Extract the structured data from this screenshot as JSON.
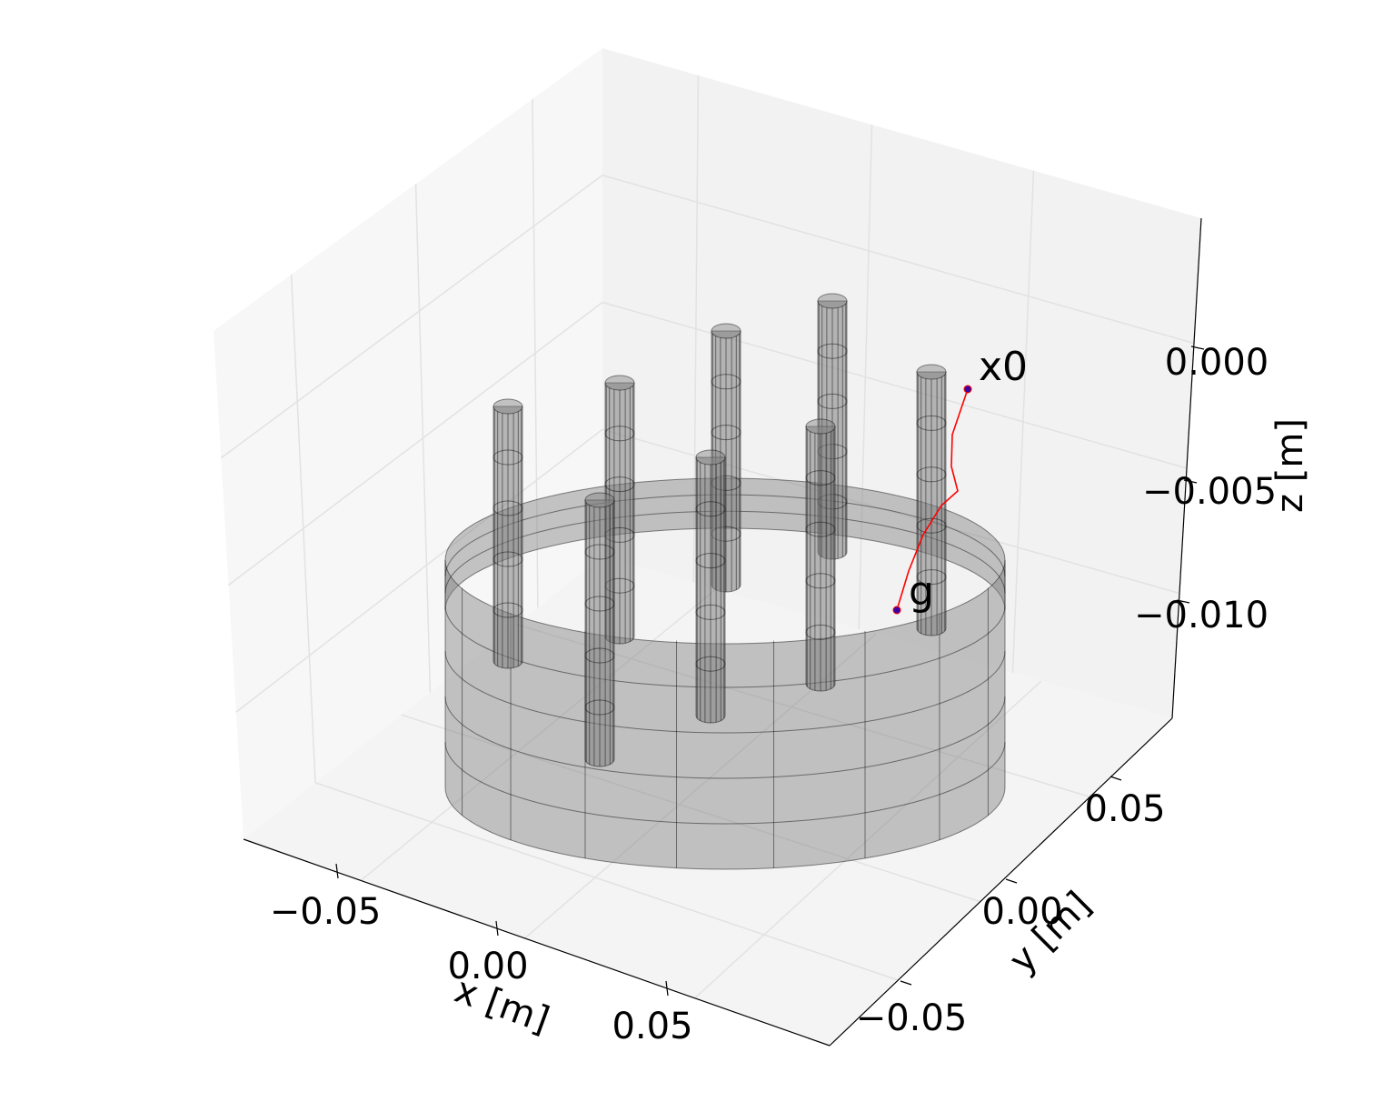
{
  "chart_data": {
    "type": "3d-scene",
    "xlabel": "x [m]",
    "ylabel": "y [m]",
    "zlabel": "z [m]",
    "x_ticks": [
      "−0.05",
      "0.00",
      "0.05"
    ],
    "y_ticks": [
      "−0.05",
      "0.00",
      "0.05"
    ],
    "z_ticks": [
      "−0.010",
      "−0.005",
      "0.000"
    ],
    "grid": true,
    "annotations": [
      {
        "label": "x0",
        "role": "start"
      },
      {
        "label": "g",
        "role": "goal"
      }
    ],
    "colors": {
      "trajectory": "#ff0000",
      "marker_face": "#3a00a0",
      "obstacle_fill": "#808080",
      "obstacle_edge": "#000000",
      "pane_back": "#f2f2f2",
      "pane_left": "#f7f7f7",
      "pane_floor": "#f4f4f4"
    }
  }
}
